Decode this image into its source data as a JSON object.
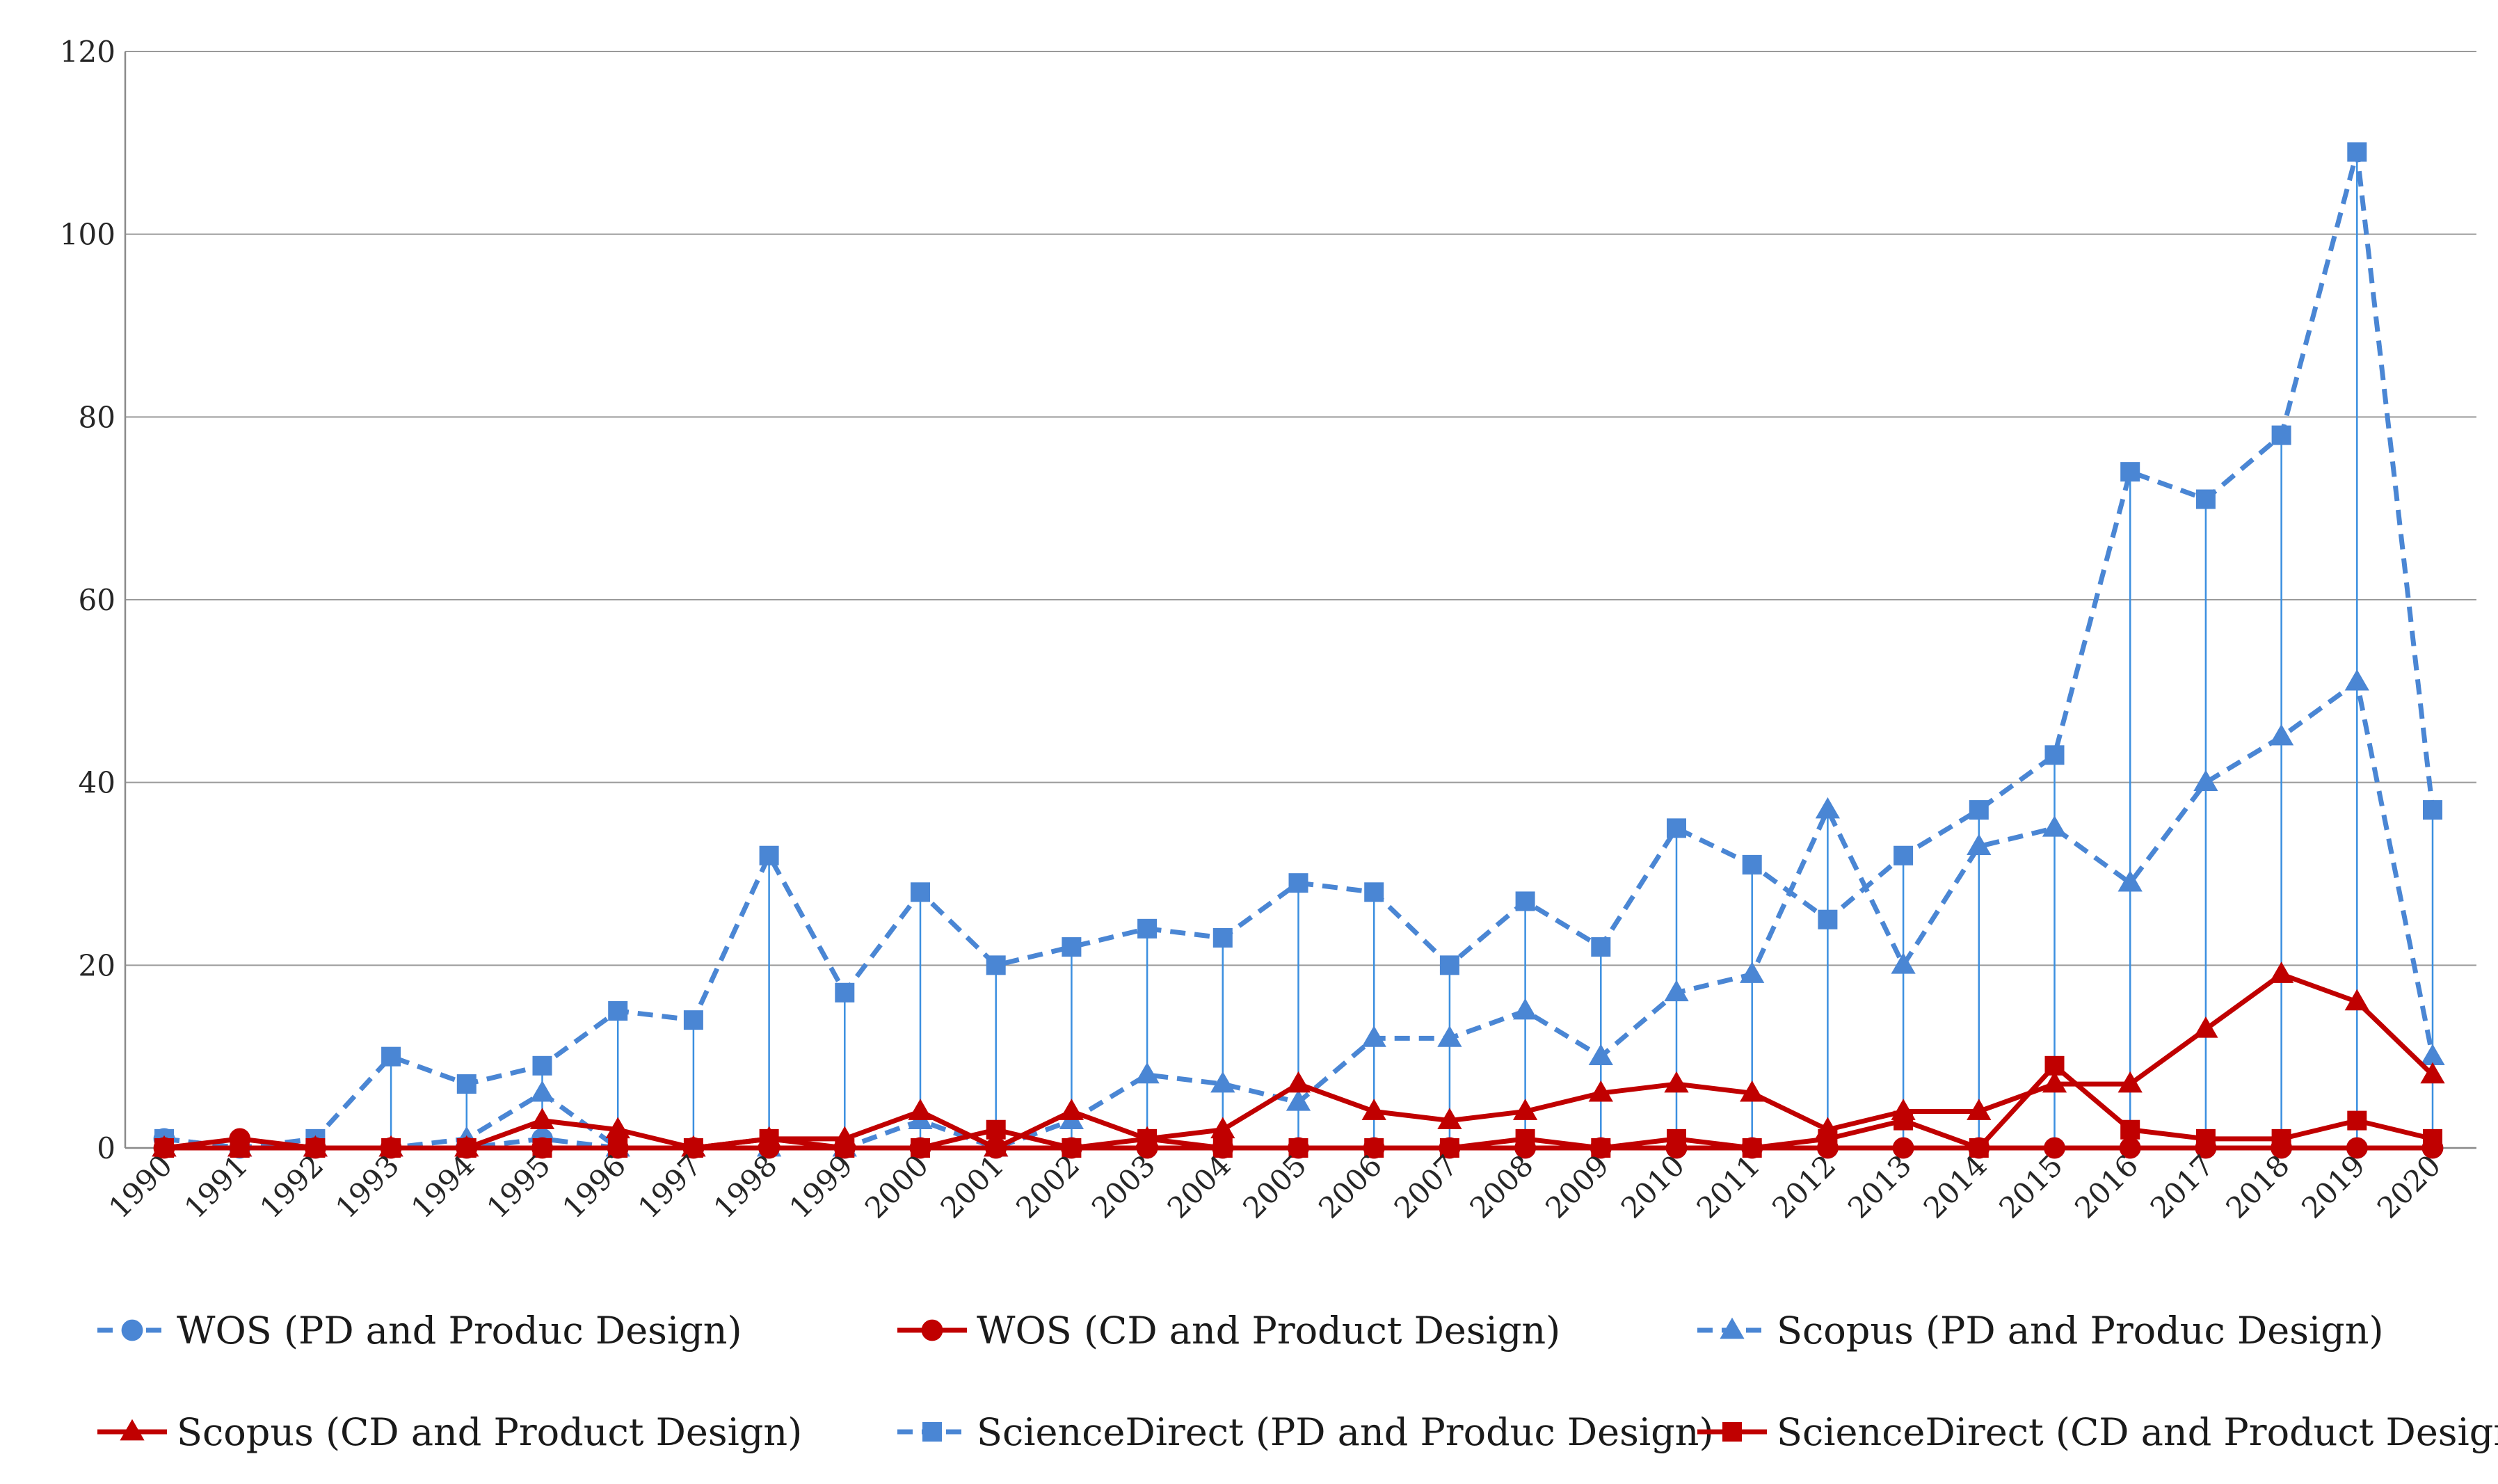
{
  "chart_data": {
    "type": "line",
    "title": "",
    "xlabel": "",
    "ylabel": "",
    "ylim": [
      0,
      120
    ],
    "yticks": [
      0,
      20,
      40,
      60,
      80,
      100,
      120
    ],
    "grid": true,
    "legend_placement": "bottom",
    "drop_lines": true,
    "categories": [
      "1990",
      "1991",
      "1992",
      "1993",
      "1994",
      "1995",
      "1996",
      "1997",
      "1998",
      "1999",
      "2000",
      "2001",
      "2002",
      "2003",
      "2004",
      "2005",
      "2006",
      "2007",
      "2008",
      "2009",
      "2010",
      "2011",
      "2012",
      "2013",
      "2014",
      "2015",
      "2016",
      "2017",
      "2018",
      "2019",
      "2020"
    ],
    "series": [
      {
        "name": "WOS (PD and Produc Design)",
        "color": "#4A86D4",
        "dashed": true,
        "marker": "circle",
        "values": [
          1,
          0,
          0,
          0,
          0,
          1,
          0,
          0,
          0,
          0,
          0,
          0,
          0,
          0,
          0,
          0,
          0,
          0,
          0,
          0,
          0,
          0,
          0,
          0,
          0,
          0,
          0,
          0,
          0,
          0,
          0
        ]
      },
      {
        "name": "WOS (CD and Product Design)",
        "color": "#C00000",
        "dashed": false,
        "marker": "circle",
        "values": [
          0,
          1,
          0,
          0,
          0,
          0,
          0,
          0,
          0,
          0,
          0,
          0,
          0,
          0,
          0,
          0,
          0,
          0,
          0,
          0,
          0,
          0,
          0,
          0,
          0,
          0,
          0,
          0,
          0,
          0,
          0
        ]
      },
      {
        "name": "Scopus (PD  and Produc Design)",
        "color": "#4A86D4",
        "dashed": true,
        "marker": "triangle",
        "values": [
          0,
          0,
          0,
          0,
          1,
          6,
          0,
          0,
          0,
          0,
          3,
          0,
          3,
          8,
          7,
          5,
          12,
          12,
          15,
          10,
          17,
          19,
          37,
          20,
          33,
          35,
          29,
          40,
          45,
          51,
          10
        ]
      },
      {
        "name": "Scopus (CD and Product Design)",
        "color": "#C00000",
        "dashed": false,
        "marker": "triangle",
        "values": [
          0,
          0,
          0,
          0,
          0,
          3,
          2,
          0,
          1,
          1,
          4,
          0,
          4,
          1,
          2,
          7,
          4,
          3,
          4,
          6,
          7,
          6,
          2,
          4,
          4,
          7,
          7,
          13,
          19,
          16,
          8
        ]
      },
      {
        "name": "ScienceDirect (PD and Produc Design)",
        "color": "#4A86D4",
        "dashed": true,
        "marker": "square",
        "values": [
          1,
          0,
          1,
          10,
          7,
          9,
          15,
          14,
          32,
          17,
          28,
          20,
          22,
          24,
          23,
          29,
          28,
          20,
          27,
          22,
          35,
          31,
          25,
          32,
          37,
          43,
          74,
          71,
          78,
          109,
          37
        ]
      },
      {
        "name": "ScienceDirect (CD and Product Design)",
        "color": "#C00000",
        "dashed": false,
        "marker": "square",
        "values": [
          0,
          0,
          0,
          0,
          0,
          0,
          0,
          0,
          1,
          0,
          0,
          2,
          0,
          1,
          0,
          0,
          0,
          0,
          1,
          0,
          1,
          0,
          1,
          3,
          0,
          9,
          2,
          1,
          1,
          3,
          1
        ]
      }
    ]
  }
}
